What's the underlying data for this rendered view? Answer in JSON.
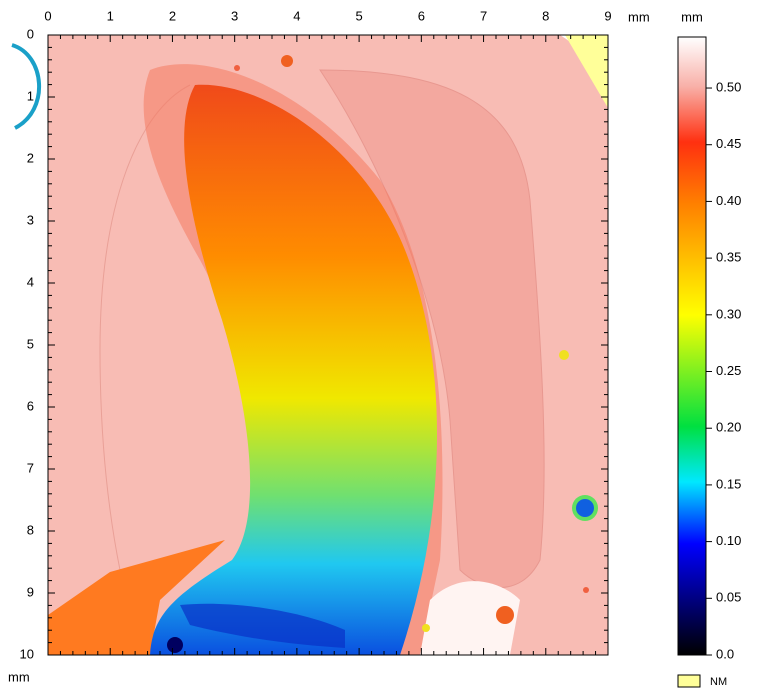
{
  "chart_data": {
    "type": "heatmap",
    "x_unit": "mm",
    "y_unit": "mm",
    "colorbar_unit": "mm",
    "xlim": [
      0,
      9
    ],
    "xticks": [
      0,
      1,
      2,
      3,
      4,
      5,
      6,
      7,
      8,
      9
    ],
    "ylim": [
      0,
      10
    ],
    "yticks": [
      0,
      1,
      2,
      3,
      4,
      5,
      6,
      7,
      8,
      9,
      10
    ],
    "clim": [
      0,
      0.545
    ],
    "cticks": [
      {
        "value": 0,
        "label": "0.0"
      },
      0.05,
      {
        "value": 0.1,
        "label": "0.10"
      },
      0.15,
      {
        "value": 0.2,
        "label": "0.20"
      },
      0.25,
      {
        "value": 0.3,
        "label": "0.30"
      },
      0.35,
      {
        "value": 0.4,
        "label": "0.40"
      },
      0.45,
      {
        "value": 0.5,
        "label": "0.50"
      }
    ],
    "legend": [
      {
        "name": "NM",
        "color": "#ffff99"
      }
    ]
  }
}
